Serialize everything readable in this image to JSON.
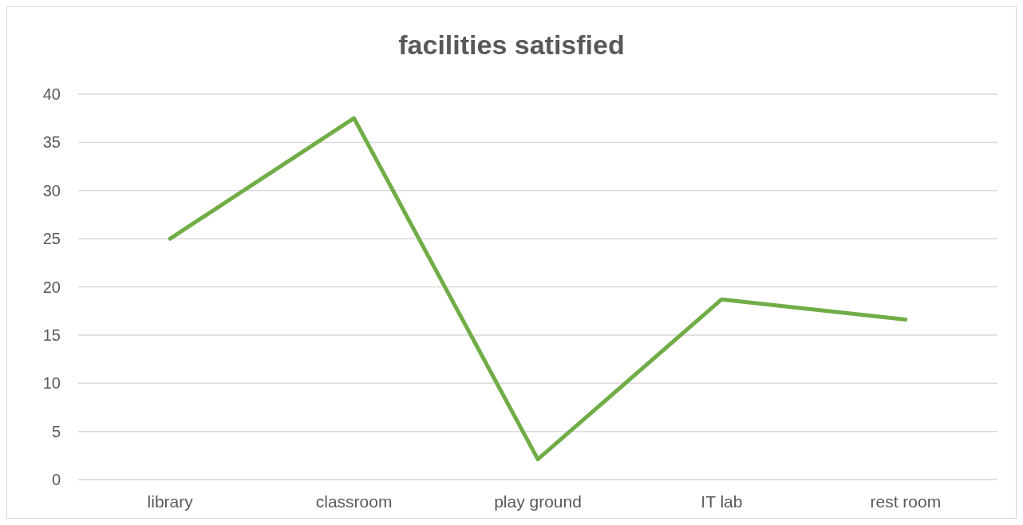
{
  "chart_data": {
    "type": "line",
    "title": "facilities satisfied",
    "categories": [
      "library",
      "classroom",
      "play ground",
      "IT lab",
      "rest room"
    ],
    "series": [
      {
        "color": "#70ad47",
        "values": [
          25,
          37.5,
          2.1,
          18.7,
          16.6
        ]
      }
    ],
    "ylim": [
      0,
      40
    ],
    "yticks": [
      0,
      5,
      10,
      15,
      20,
      25,
      30,
      35,
      40
    ],
    "grid": "y",
    "marker": "none",
    "line_style": "solid"
  }
}
